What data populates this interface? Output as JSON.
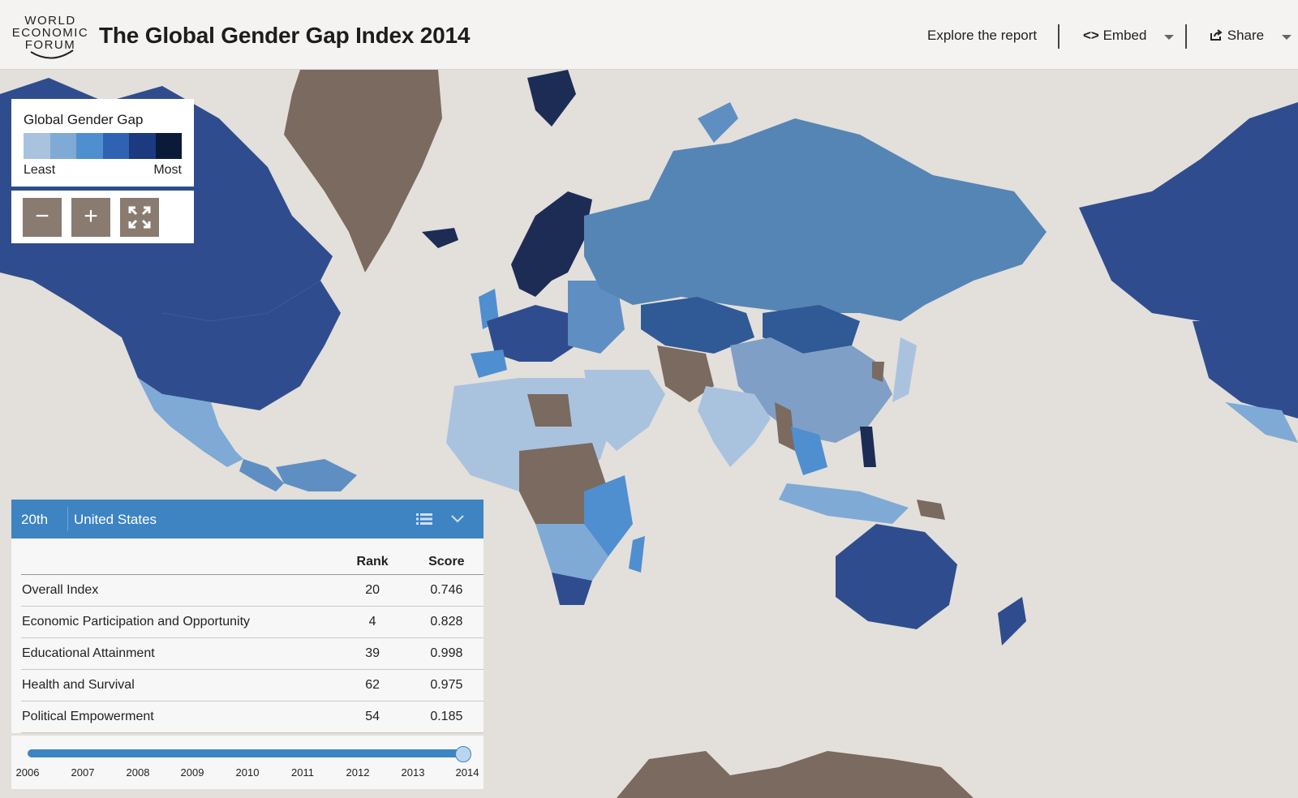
{
  "header": {
    "logo_lines": [
      "WORLD",
      "ECONOMIC",
      "FORUM"
    ],
    "title": "The Global Gender Gap Index 2014",
    "explore_label": "Explore the report",
    "embed_label": "Embed",
    "embed_icon": "code-icon",
    "share_label": "Share",
    "share_icon": "share-icon"
  },
  "legend": {
    "title": "Global Gender Gap",
    "min_label": "Least",
    "max_label": "Most",
    "scale_colors": [
      "#a9c3df",
      "#7faad6",
      "#4f8fcf",
      "#2e63b3",
      "#1b3a80",
      "#0c1a3a"
    ]
  },
  "controls": {
    "zoom_out_icon": "minus-icon",
    "zoom_in_icon": "plus-icon",
    "fullscreen_icon": "fullscreen-icon"
  },
  "map_colors": {
    "ocean": "#e3dfda",
    "no_data": "#7a6a5f",
    "tier_light": "#a9c3df",
    "tier_mid": "#5f8fc2",
    "tier_dark": "#2f4d8e",
    "tier_darkest": "#1c2c55"
  },
  "panel": {
    "rank_position": "20th",
    "country": "United States",
    "list_icon": "list-icon",
    "dropdown_icon": "chevron-down-icon",
    "col_rank": "Rank",
    "col_score": "Score",
    "rows": [
      {
        "label": "Overall Index",
        "rank": "20",
        "score": "0.746"
      },
      {
        "label": "Economic Participation and Opportunity",
        "rank": "4",
        "score": "0.828"
      },
      {
        "label": "Educational Attainment",
        "rank": "39",
        "score": "0.998"
      },
      {
        "label": "Health and Survival",
        "rank": "62",
        "score": "0.975"
      },
      {
        "label": "Political Empowerment",
        "rank": "54",
        "score": "0.185"
      }
    ]
  },
  "timeline": {
    "years": [
      "2006",
      "2007",
      "2008",
      "2009",
      "2010",
      "2011",
      "2012",
      "2013",
      "2014"
    ],
    "selected": "2014"
  }
}
